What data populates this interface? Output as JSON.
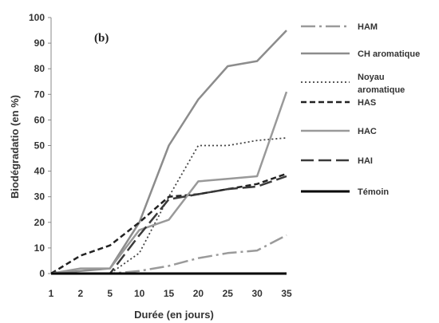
{
  "chart_data": {
    "type": "line",
    "panel_label": "(b)",
    "xlabel": "Durée (en jours)",
    "ylabel": "Biodégradatio (en %)",
    "categories": [
      "1",
      "2",
      "5",
      "10",
      "15",
      "20",
      "25",
      "30",
      "35"
    ],
    "ylim": [
      0,
      100
    ],
    "yticks": [
      0,
      10,
      20,
      30,
      40,
      50,
      60,
      70,
      80,
      90,
      100
    ],
    "grid": false,
    "legend_position": "right",
    "series": [
      {
        "name": "HAM",
        "values": [
          0,
          0,
          0,
          1,
          3,
          6,
          8,
          9,
          15
        ],
        "color": "#9a9a9a",
        "dash": "18,5,3,5",
        "width": 2.5
      },
      {
        "name": "CH aromatique",
        "values": [
          0,
          1,
          2,
          20,
          50,
          68,
          81,
          83,
          95
        ],
        "color": "#8c8c8c",
        "dash": "",
        "width": 2.5
      },
      {
        "name": "Noyau aromatique",
        "values": [
          0,
          0,
          0,
          8,
          30,
          50,
          50,
          52,
          53
        ],
        "color": "#444444",
        "dash": "2,3",
        "width": 1.8
      },
      {
        "name": "HAS",
        "values": [
          0,
          7,
          11,
          20,
          30,
          31,
          33,
          35,
          39
        ],
        "color": "#222222",
        "dash": "7,4",
        "width": 2.5
      },
      {
        "name": "HAC",
        "values": [
          0,
          2,
          2,
          17,
          21,
          36,
          37,
          38,
          71
        ],
        "color": "#999999",
        "dash": "",
        "width": 2.5
      },
      {
        "name": "HAI",
        "values": [
          0,
          0,
          0,
          15,
          29,
          31,
          33,
          34,
          38
        ],
        "color": "#3a3a3a",
        "dash": "16,6",
        "width": 2.5
      },
      {
        "name": "Témoin",
        "values": [
          0,
          0,
          0,
          0,
          0,
          0,
          0,
          0,
          0
        ],
        "color": "#000000",
        "dash": "",
        "width": 3
      }
    ],
    "legend_lines": [
      [
        "HAM"
      ],
      [
        "CH aromatique"
      ],
      [
        "Noyau",
        "aromatique"
      ],
      [
        "HAS"
      ],
      [
        "HAC"
      ],
      [
        "HAI"
      ],
      [
        "Témoin"
      ]
    ]
  }
}
